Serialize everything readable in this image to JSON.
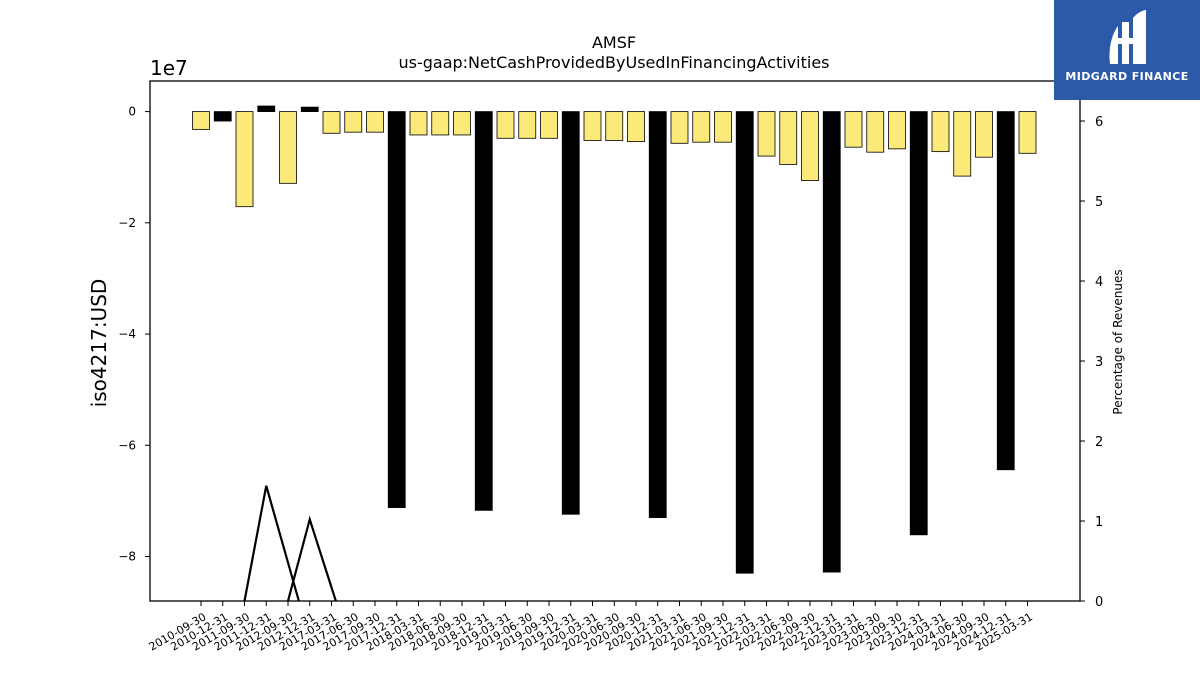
{
  "logo": {
    "text": "MIDGARD FINANCE",
    "icon": "midgard-logo-icon",
    "color": "#2c5aa8"
  },
  "chart_data": {
    "type": "bar",
    "title": "AMSF",
    "subtitle": "us-gaap:NetCashProvidedByUsedInFinancingActivities",
    "ylabel": "iso4217:USD",
    "y_offset_label": "1e7",
    "y2label": "Percentage of Revenues",
    "ylim": [
      -8.8,
      0.55
    ],
    "y2lim": [
      0,
      6.5
    ],
    "y_ticks": [
      0,
      -2,
      -4,
      -6,
      -8
    ],
    "y_tick_labels": [
      "0",
      "−2",
      "−4",
      "−6",
      "−8"
    ],
    "y2_ticks": [
      0,
      1,
      2,
      3,
      4,
      5,
      6
    ],
    "y2_tick_labels": [
      "0",
      "1",
      "2",
      "3",
      "4",
      "5",
      "6"
    ],
    "grid": false,
    "categories": [
      "2010-09-30",
      "2010-12-31",
      "2011-09-30",
      "2011-12-31",
      "2012-09-30",
      "2012-12-31",
      "2017-03-31",
      "2017-06-30",
      "2017-09-30",
      "2017-12-31",
      "2018-03-31",
      "2018-06-30",
      "2018-09-30",
      "2018-12-31",
      "2019-03-31",
      "2019-06-30",
      "2019-09-30",
      "2019-12-31",
      "2020-03-31",
      "2020-06-30",
      "2020-09-30",
      "2020-12-31",
      "2021-03-31",
      "2021-06-30",
      "2021-09-30",
      "2021-12-31",
      "2022-03-31",
      "2022-06-30",
      "2022-09-30",
      "2022-12-31",
      "2023-03-31",
      "2023-06-30",
      "2023-09-30",
      "2023-12-31",
      "2024-03-31",
      "2024-06-30",
      "2024-09-30",
      "2024-12-31",
      "2025-03-31"
    ],
    "series": [
      {
        "name": "",
        "color": "#fbe97a",
        "edge": "#000000",
        "values": [
          -0.32,
          -0.17,
          -1.71,
          0.1,
          -1.29,
          0.08,
          -0.39,
          -0.37,
          -0.37,
          -7.12,
          -0.42,
          -0.42,
          -0.42,
          -7.17,
          -0.48,
          -0.48,
          -0.48,
          -7.24,
          -0.52,
          -0.52,
          -0.54,
          -7.3,
          -0.57,
          -0.55,
          -0.55,
          -8.3,
          -0.8,
          -0.95,
          -1.24,
          -8.28,
          -0.64,
          -0.73,
          -0.67,
          -7.61,
          -0.72,
          -1.16,
          -0.82,
          -6.44,
          -0.75
        ]
      }
    ],
    "annual_categories": [
      "2010-12-31",
      "2011-12-31",
      "2012-12-31",
      "2017-12-31",
      "2018-12-31",
      "2019-12-31",
      "2020-12-31",
      "2021-12-31",
      "2022-12-31",
      "2023-12-31",
      "2024-12-31"
    ],
    "percentage_of_revenues": {
      "name": "",
      "color": "#000000",
      "points": [
        {
          "x": "2011-09-30",
          "y": 0
        },
        {
          "x": "2011-12-31",
          "y": 1.44
        },
        {
          "x": "2012-03-31",
          "y": 0
        },
        {
          "x": "2012-09-30",
          "y": 0
        },
        {
          "x": "2012-12-31",
          "y": 1.02
        },
        {
          "x": "2013-03-31",
          "y": 0
        }
      ]
    }
  }
}
